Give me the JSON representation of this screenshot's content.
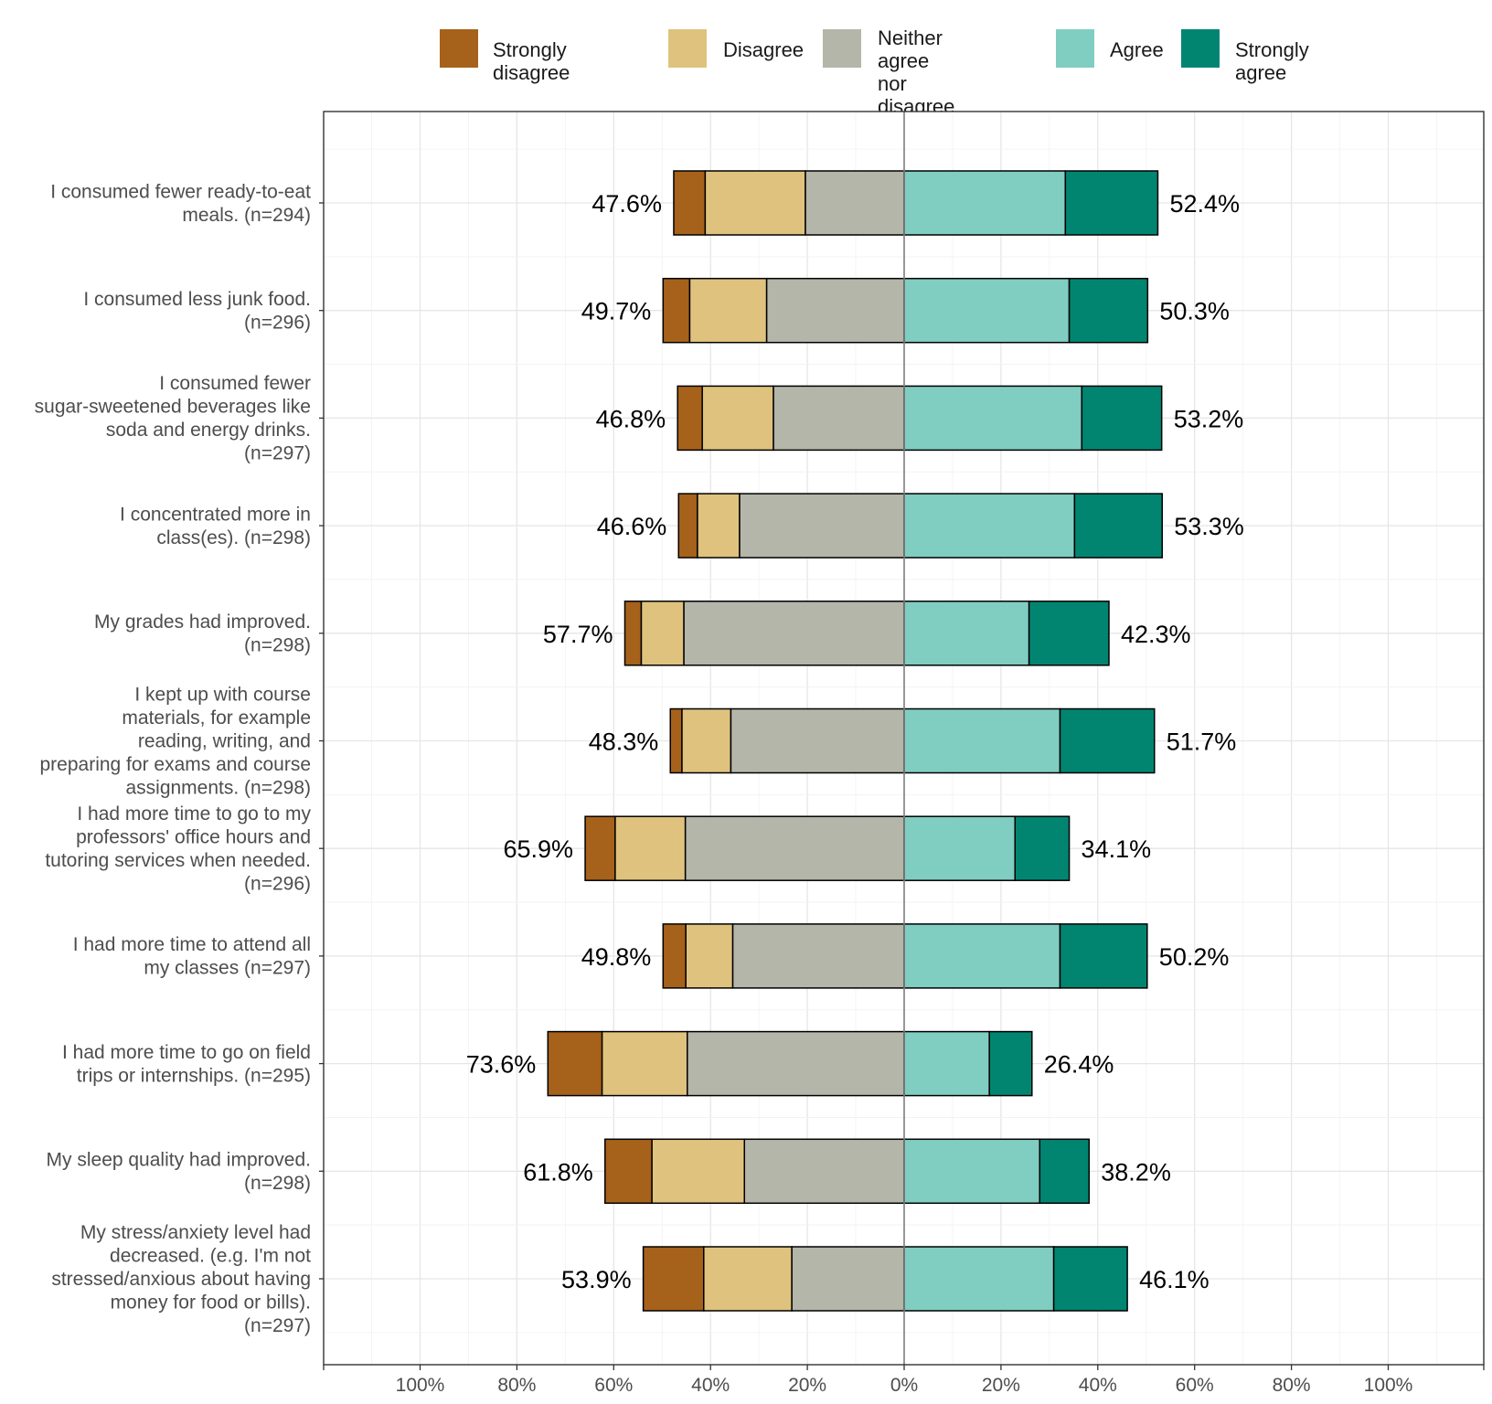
{
  "chart_data": {
    "type": "bar",
    "subtype": "diverging-stacked-likert",
    "legend": {
      "position": "top",
      "entries": [
        {
          "name": "Strongly disagree",
          "color": "#A6611A"
        },
        {
          "name": "Disagree",
          "color": "#DFC27D"
        },
        {
          "name": "Neither agree nor\ndisagree",
          "color": "#B3B6A8"
        },
        {
          "name": "Agree",
          "color": "#80CDC1"
        },
        {
          "name": "Strongly agree",
          "color": "#018571"
        }
      ]
    },
    "xaxis": {
      "ticks": [
        -100,
        -80,
        -60,
        -40,
        -20,
        0,
        20,
        40,
        60,
        80,
        100
      ],
      "tick_labels": [
        "100%",
        "80%",
        "60%",
        "40%",
        "20%",
        "0%",
        "20%",
        "40%",
        "60%",
        "80%",
        "100%"
      ],
      "range": [
        -120,
        120
      ]
    },
    "grid": true,
    "categories": [
      "I consumed fewer ready-to-eat\nmeals. (n=294)",
      "I consumed less junk food.\n(n=296)",
      "I consumed fewer\nsugar-sweetened beverages like\nsoda and energy drinks.\n(n=297)",
      "I concentrated more in\nclass(es). (n=298)",
      "My grades had improved.\n(n=298)",
      "I kept up with course\nmaterials, for example\nreading, writing, and\npreparing for exams and course\nassignments. (n=298)",
      "I had more time to go to my\nprofessors' office hours and\ntutoring services when needed.\n(n=296)",
      "I had more time to attend all\nmy classes (n=297)",
      "I had more time to go on field\ntrips or internships. (n=295)",
      "My sleep quality had improved.\n(n=298)",
      "My stress/anxiety level had\ndecreased. (e.g. I'm not\nstressed/anxious about having\nmoney for food or bills).\n(n=297)"
    ],
    "series": [
      {
        "name": "Strongly disagree",
        "values": [
          6.5,
          5.5,
          5.1,
          3.9,
          3.4,
          2.4,
          6.2,
          4.7,
          11.2,
          9.7,
          12.5
        ]
      },
      {
        "name": "Disagree",
        "values": [
          20.7,
          15.9,
          14.7,
          8.7,
          8.8,
          10.1,
          14.5,
          9.7,
          17.6,
          19.1,
          18.2
        ]
      },
      {
        "name": "Neither agree nor\ndisagree",
        "values": [
          20.4,
          28.4,
          27.0,
          34.0,
          45.5,
          35.8,
          45.2,
          35.4,
          44.8,
          33.0,
          23.2
        ]
      },
      {
        "name": "Agree",
        "values": [
          33.3,
          34.1,
          36.7,
          35.2,
          25.8,
          32.2,
          22.9,
          32.2,
          17.6,
          28.0,
          30.9
        ]
      },
      {
        "name": "Strongly agree",
        "values": [
          19.1,
          16.2,
          16.5,
          18.1,
          16.5,
          19.5,
          11.2,
          18.0,
          8.8,
          10.2,
          15.2
        ]
      }
    ],
    "left_totals": [
      "47.6%",
      "49.7%",
      "46.8%",
      "46.6%",
      "57.7%",
      "48.3%",
      "65.9%",
      "49.8%",
      "73.6%",
      "61.8%",
      "53.9%"
    ],
    "right_totals": [
      "52.4%",
      "50.3%",
      "53.2%",
      "53.3%",
      "42.3%",
      "51.7%",
      "34.1%",
      "50.2%",
      "26.4%",
      "38.2%",
      "46.1%"
    ]
  }
}
